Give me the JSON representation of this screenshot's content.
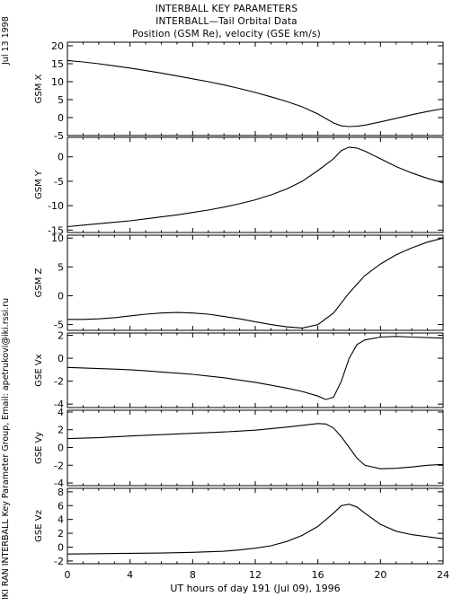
{
  "header": {
    "title_lines": [
      "INTERBALL KEY PARAMETERS",
      "INTERBALL—Tail Orbital Data",
      "Position (GSM Re), velocity (GSE km/s)"
    ]
  },
  "side": {
    "date": "Jul 13 1998",
    "credit": "IKI RAN INTERBALL Key Parameter Group, Email: apetrukovi@iki.rssi.ru"
  },
  "colors": {
    "line": "#000000",
    "frame": "#000000",
    "background": "#ffffff"
  },
  "chart_data": {
    "type": "line",
    "xlabel": "UT hours of day 191 (Jul 09), 1996",
    "xlim": [
      0,
      24
    ],
    "xticks": [
      0,
      4,
      8,
      12,
      16,
      20,
      24
    ],
    "grid": false,
    "panels": [
      {
        "ylabel": "GSM X",
        "ylim": [
          -5,
          21
        ],
        "yticks": [
          -5,
          0,
          5,
          10,
          15,
          20
        ],
        "x": [
          0,
          1,
          2,
          3,
          4,
          5,
          6,
          7,
          8,
          9,
          10,
          11,
          12,
          13,
          14,
          15,
          16,
          17,
          17.5,
          18,
          18.5,
          19,
          20,
          21,
          22,
          23,
          24
        ],
        "y": [
          15.9,
          15.5,
          15.0,
          14.4,
          13.8,
          13.1,
          12.4,
          11.6,
          10.8,
          10.0,
          9.1,
          8.1,
          7.0,
          5.8,
          4.5,
          3.0,
          1.0,
          -1.5,
          -2.3,
          -2.5,
          -2.4,
          -2.1,
          -1.2,
          -0.2,
          0.8,
          1.7,
          2.5
        ]
      },
      {
        "ylabel": "GSM Y",
        "ylim": [
          -15.5,
          4
        ],
        "yticks": [
          -15,
          -10,
          -5,
          0
        ],
        "x": [
          0,
          1,
          2,
          3,
          4,
          5,
          6,
          7,
          8,
          9,
          10,
          11,
          12,
          13,
          14,
          15,
          16,
          17,
          17.5,
          18,
          18.5,
          19,
          20,
          21,
          22,
          23,
          24
        ],
        "y": [
          -14.3,
          -14.0,
          -13.7,
          -13.4,
          -13.1,
          -12.7,
          -12.3,
          -11.9,
          -11.4,
          -10.9,
          -10.3,
          -9.6,
          -8.8,
          -7.8,
          -6.6,
          -5.0,
          -2.8,
          -0.4,
          1.3,
          2.0,
          1.8,
          1.2,
          -0.4,
          -2.0,
          -3.3,
          -4.4,
          -5.3
        ]
      },
      {
        "ylabel": "GSM Z",
        "ylim": [
          -6,
          10.5
        ],
        "yticks": [
          -5,
          0,
          5,
          10
        ],
        "x": [
          0,
          1,
          2,
          3,
          4,
          5,
          6,
          7,
          8,
          9,
          10,
          11,
          12,
          13,
          14,
          15,
          16,
          17,
          18,
          19,
          20,
          21,
          22,
          23,
          24
        ],
        "y": [
          -4.1,
          -4.1,
          -4.0,
          -3.8,
          -3.5,
          -3.2,
          -3.0,
          -2.9,
          -3.0,
          -3.2,
          -3.6,
          -4.0,
          -4.5,
          -5.0,
          -5.4,
          -5.6,
          -5.0,
          -3.0,
          0.5,
          3.5,
          5.5,
          7.1,
          8.3,
          9.3,
          10.0
        ]
      },
      {
        "ylabel": "GSE Vx",
        "ylim": [
          -4.3,
          2.2
        ],
        "yticks": [
          -4,
          -2,
          0,
          2
        ],
        "x": [
          0,
          1,
          2,
          3,
          4,
          5,
          6,
          7,
          8,
          9,
          10,
          11,
          12,
          13,
          14,
          15,
          16,
          16.5,
          17,
          17.5,
          18,
          18.5,
          19,
          20,
          21,
          22,
          23,
          24
        ],
        "y": [
          -0.8,
          -0.85,
          -0.9,
          -0.95,
          -1.0,
          -1.1,
          -1.2,
          -1.3,
          -1.4,
          -1.55,
          -1.7,
          -1.9,
          -2.1,
          -2.35,
          -2.6,
          -2.9,
          -3.3,
          -3.6,
          -3.4,
          -2.0,
          0.0,
          1.2,
          1.6,
          1.85,
          1.9,
          1.85,
          1.8,
          1.75
        ]
      },
      {
        "ylabel": "GSE Vy",
        "ylim": [
          -4.3,
          4.2
        ],
        "yticks": [
          -4,
          -2,
          0,
          2,
          4
        ],
        "x": [
          0,
          2,
          4,
          6,
          8,
          10,
          12,
          14,
          15,
          16,
          16.5,
          17,
          17.5,
          18,
          18.5,
          19,
          20,
          21,
          22,
          23,
          24
        ],
        "y": [
          1.0,
          1.1,
          1.3,
          1.45,
          1.6,
          1.75,
          1.95,
          2.3,
          2.5,
          2.7,
          2.65,
          2.2,
          1.2,
          0.0,
          -1.2,
          -2.0,
          -2.4,
          -2.35,
          -2.2,
          -2.0,
          -1.9
        ]
      },
      {
        "ylabel": "GSE Vz",
        "ylim": [
          -2.4,
          8.5
        ],
        "yticks": [
          -2,
          0,
          2,
          4,
          6,
          8
        ],
        "x": [
          0,
          2,
          4,
          6,
          8,
          10,
          11,
          12,
          13,
          14,
          15,
          16,
          17,
          17.5,
          18,
          18.5,
          19,
          20,
          21,
          22,
          23,
          24
        ],
        "y": [
          -1.0,
          -0.95,
          -0.9,
          -0.85,
          -0.75,
          -0.6,
          -0.4,
          -0.15,
          0.2,
          0.8,
          1.7,
          3.0,
          4.9,
          6.0,
          6.2,
          5.8,
          4.9,
          3.3,
          2.3,
          1.8,
          1.5,
          1.2
        ]
      }
    ]
  }
}
